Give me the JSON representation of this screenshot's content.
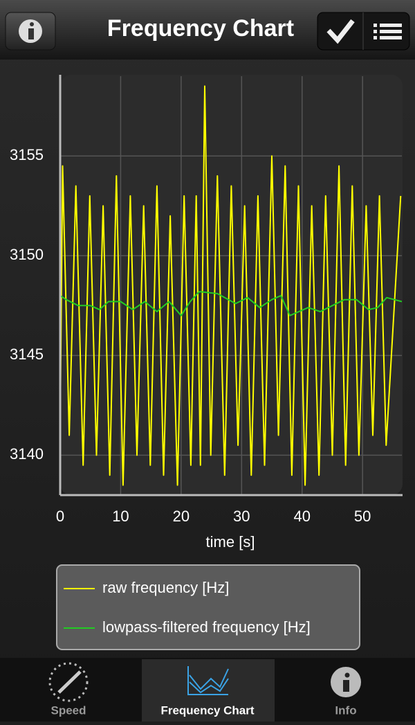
{
  "header": {
    "title": "Frequency Chart"
  },
  "chart_data": {
    "type": "line",
    "xlabel": "time [s]",
    "xlim": [
      0,
      56.5
    ],
    "ylim": [
      3138,
      3159
    ],
    "xticks": [
      0,
      10,
      20,
      30,
      40,
      50
    ],
    "yticks": [
      3140,
      3145,
      3150,
      3155
    ],
    "grid": true,
    "series": [
      {
        "name": "raw frequency [Hz]",
        "color": "#ffff00",
        "x": [
          0,
          0.4,
          1.5,
          2.6,
          3.8,
          4.9,
          6.0,
          7.1,
          8.2,
          9.3,
          10.4,
          11.6,
          12.7,
          13.8,
          14.9,
          16.0,
          17.1,
          18.2,
          19.4,
          20.5,
          21.6,
          22.5,
          23.2,
          23.9,
          24.9,
          26.0,
          27.2,
          28.3,
          29.4,
          30.5,
          31.6,
          32.7,
          33.8,
          35.0,
          36.1,
          37.2,
          38.3,
          39.4,
          40.5,
          41.6,
          42.8,
          43.9,
          45.0,
          46.1,
          47.2,
          48.3,
          49.4,
          50.6,
          51.7,
          52.8,
          53.9,
          56.3
        ],
        "values": [
          3141.5,
          3154.5,
          3141,
          3153.5,
          3139.5,
          3153,
          3140,
          3152.5,
          3139,
          3154,
          3138.5,
          3153,
          3140,
          3152.5,
          3139.5,
          3153.5,
          3139,
          3152,
          3138.5,
          3153,
          3139.5,
          3153,
          3139.5,
          3158.5,
          3140,
          3154,
          3139,
          3153.5,
          3140.5,
          3152.5,
          3139,
          3153,
          3139.5,
          3155,
          3141,
          3154.5,
          3139,
          3153.5,
          3138.5,
          3152.5,
          3139,
          3153,
          3140,
          3154.5,
          3139.5,
          3153.5,
          3140,
          3152.5,
          3141,
          3153,
          3140.5,
          3153
        ]
      },
      {
        "name": "lowpass-filtered frequency [Hz]",
        "color": "#22cc22",
        "x": [
          0,
          1,
          3,
          5,
          6.5,
          8,
          10,
          12,
          14,
          16,
          18,
          20,
          21.5,
          23,
          26,
          29,
          31,
          33,
          35,
          36.5,
          38,
          41,
          43,
          45,
          47,
          49,
          51,
          52.5,
          54,
          56.5
        ],
        "values": [
          3148,
          3147.8,
          3147.5,
          3147.5,
          3147.3,
          3147.7,
          3147.7,
          3147.3,
          3147.7,
          3147.2,
          3147.7,
          3147,
          3147.7,
          3148.2,
          3148.1,
          3147.6,
          3147.9,
          3147.4,
          3147.8,
          3148,
          3147,
          3147.4,
          3147.2,
          3147.5,
          3147.8,
          3147.8,
          3147.3,
          3147.4,
          3147.9,
          3147.7
        ]
      }
    ]
  },
  "tabs": [
    "Speed",
    "Frequency Chart",
    "Info"
  ]
}
